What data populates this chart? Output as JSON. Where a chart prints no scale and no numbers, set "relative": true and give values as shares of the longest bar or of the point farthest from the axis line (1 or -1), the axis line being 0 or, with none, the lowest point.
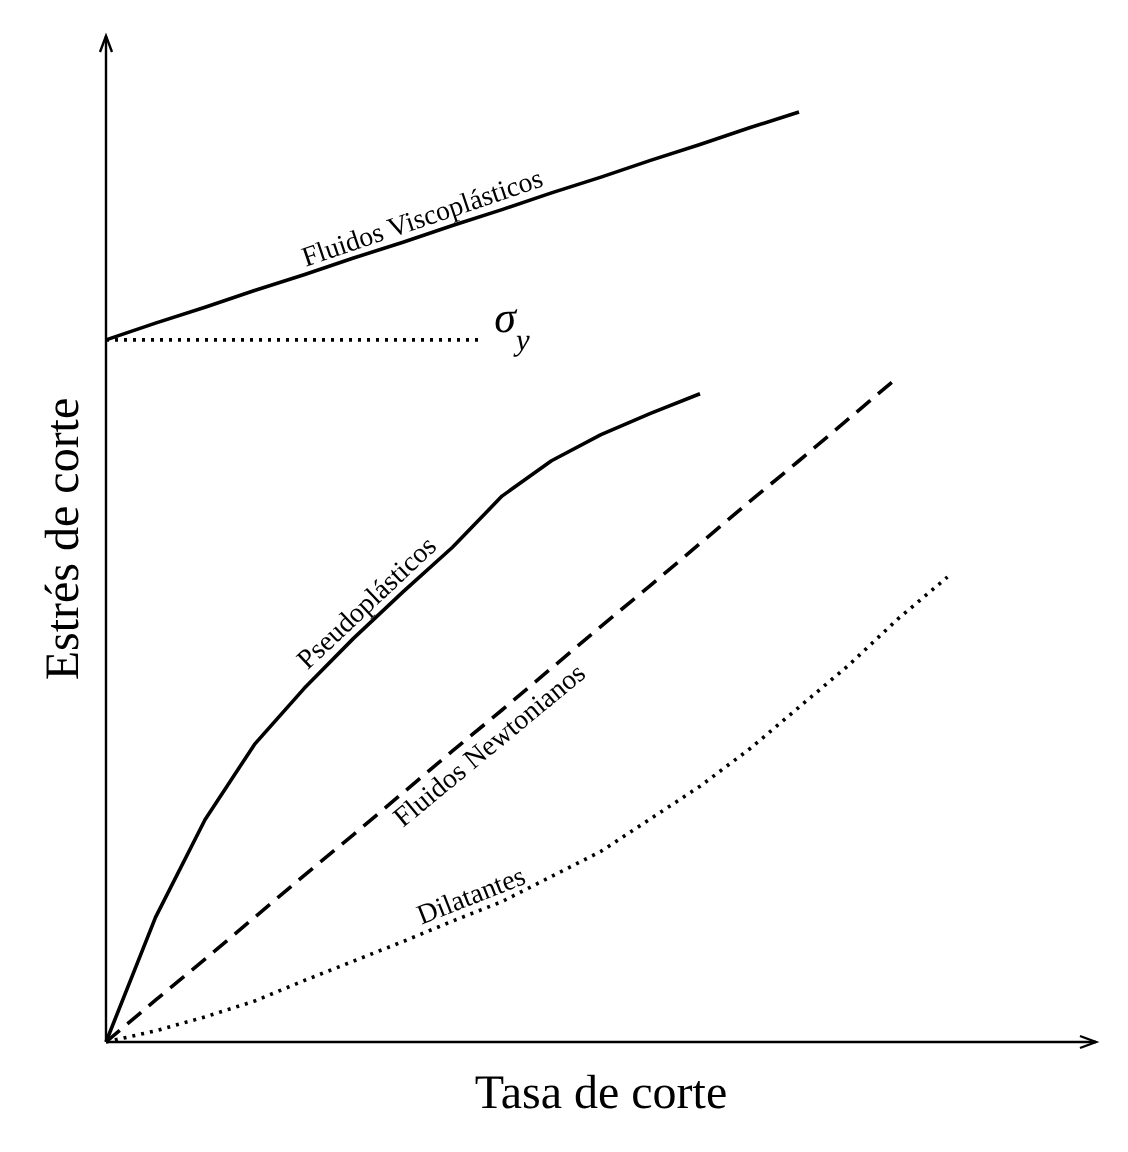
{
  "chart_data": {
    "type": "line",
    "relative": true,
    "xlabel": "Tasa de corte",
    "ylabel": "Estrés de corte",
    "legend": false,
    "marker": "none",
    "categories": [
      null,
      null,
      null,
      null,
      null,
      null,
      null,
      null,
      null,
      null,
      null,
      null,
      null,
      null,
      null,
      null,
      null,
      null,
      null,
      null,
      null
    ],
    "series": [
      {
        "name": "Fluidos Viscoplásticos",
        "color": "#000000",
        "line_style": "solid",
        "values": [
          0.755,
          0.773,
          0.79,
          0.808,
          0.825,
          0.843,
          0.86,
          0.878,
          0.895,
          0.913,
          0.93,
          0.948,
          0.965,
          0.983,
          1,
          null,
          null,
          null,
          null,
          null,
          null
        ]
      },
      {
        "name": "Pseudoplásticos",
        "color": "#000000",
        "line_style": "solid",
        "values": [
          0,
          0.134,
          0.239,
          0.32,
          0.38,
          0.434,
          0.484,
          0.532,
          0.587,
          0.625,
          0.653,
          0.676,
          0.697,
          null,
          null,
          null,
          null,
          null,
          null,
          null,
          null
        ]
      },
      {
        "name": "Fluidos Newtonianos",
        "color": "#000000",
        "line_style": "dashed",
        "values": [
          0,
          0.045,
          0.089,
          0.134,
          0.179,
          0.223,
          0.268,
          0.313,
          0.357,
          0.402,
          0.447,
          0.491,
          0.536,
          0.581,
          0.625,
          0.67,
          0.715,
          null,
          null,
          null,
          null
        ]
      },
      {
        "name": "Dilatantes",
        "color": "#000000",
        "line_style": "dotted",
        "values": [
          0,
          0.012,
          0.027,
          0.044,
          0.066,
          0.087,
          0.108,
          0.13,
          0.151,
          0.178,
          0.205,
          0.24,
          0.275,
          0.315,
          0.36,
          0.405,
          0.455,
          0.5,
          null,
          null,
          null
        ]
      }
    ],
    "ref_lines": [
      {
        "axis": "y",
        "value": 0.755,
        "label": "σ$_{y}$",
        "line_style": "dotted",
        "color": "#000000"
      }
    ]
  }
}
